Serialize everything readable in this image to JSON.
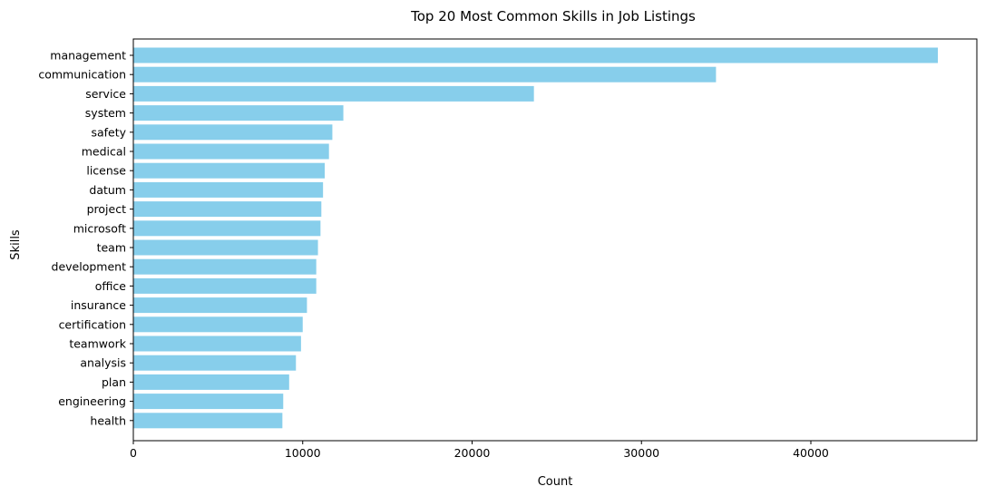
{
  "chart_data": {
    "type": "bar",
    "orientation": "horizontal",
    "title": "Top 20 Most Common Skills in Job Listings",
    "xlabel": "Count",
    "ylabel": "Skills",
    "categories": [
      "management",
      "communication",
      "service",
      "system",
      "safety",
      "medical",
      "license",
      "datum",
      "project",
      "microsoft",
      "team",
      "development",
      "office",
      "insurance",
      "certification",
      "teamwork",
      "analysis",
      "plan",
      "engineering",
      "health"
    ],
    "values": [
      47500,
      34400,
      23650,
      12400,
      11750,
      11550,
      11300,
      11200,
      11100,
      11050,
      10900,
      10800,
      10800,
      10250,
      10000,
      9900,
      9600,
      9200,
      8850,
      8800
    ],
    "xlim": [
      0,
      50000
    ],
    "xticks": [
      0,
      10000,
      20000,
      30000,
      40000
    ],
    "bar_color": "#87ceeb",
    "grid": false
  }
}
